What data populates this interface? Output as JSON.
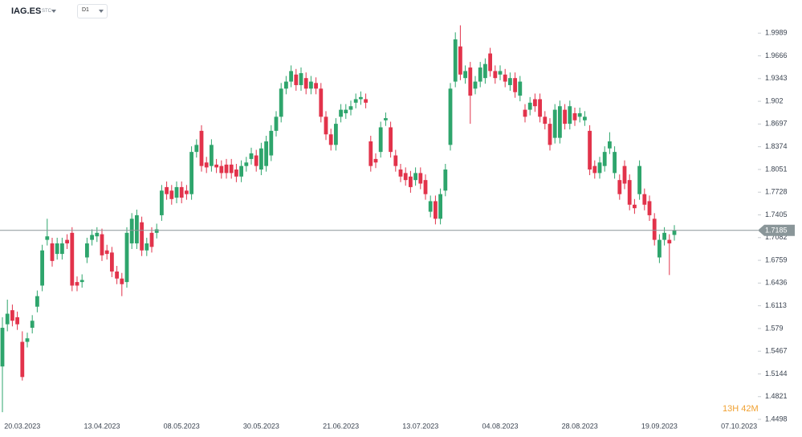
{
  "chart_data": {
    "type": "candlestick",
    "symbol": "IAG.ES",
    "symbol_type": "STC",
    "timeframe": "D1",
    "up_color": "#2ea56c",
    "down_color": "#e2334b",
    "ylim": [
      1.443,
      2.046
    ],
    "yticks": [
      1.9989,
      1.9666,
      1.9343,
      1.902,
      1.8697,
      1.8374,
      1.8051,
      1.7728,
      1.7405,
      1.7082,
      1.6759,
      1.6436,
      1.6113,
      1.579,
      1.5467,
      1.5144,
      1.4821,
      1.4498
    ],
    "current_price": 1.7185,
    "current_price_color": "#8a9699",
    "countdown": "13H 42M",
    "categories": [
      null,
      null,
      null,
      null,
      "20.03.2023",
      null,
      null,
      null,
      null,
      null,
      null,
      null,
      null,
      null,
      null,
      null,
      null,
      null,
      null,
      null,
      "13.04.2023",
      null,
      null,
      null,
      null,
      null,
      null,
      null,
      null,
      null,
      null,
      null,
      null,
      null,
      null,
      null,
      "08.05.2023",
      null,
      null,
      null,
      null,
      null,
      null,
      null,
      null,
      null,
      null,
      null,
      null,
      null,
      null,
      null,
      "30.05.2023",
      null,
      null,
      null,
      null,
      null,
      null,
      null,
      null,
      null,
      null,
      null,
      null,
      null,
      null,
      null,
      "21.06.2023",
      null,
      null,
      null,
      null,
      null,
      null,
      null,
      null,
      null,
      null,
      null,
      null,
      null,
      null,
      null,
      "13.07.2023",
      null,
      null,
      null,
      null,
      null,
      null,
      null,
      null,
      null,
      null,
      null,
      null,
      null,
      null,
      null,
      "04.08.2023",
      null,
      null,
      null,
      null,
      null,
      null,
      null,
      null,
      null,
      null,
      null,
      null,
      null,
      null,
      null,
      "28.08.2023",
      null,
      null,
      null,
      null,
      null,
      null,
      null,
      null,
      null,
      null,
      null,
      null,
      null,
      null,
      null,
      "19.09.2023",
      null,
      null,
      null,
      null,
      null,
      null,
      null,
      null,
      null,
      null,
      null,
      null,
      null,
      null,
      null,
      "07.10.2023"
    ],
    "open": [
      1.525,
      1.585,
      1.605,
      1.595,
      1.56,
      1.56,
      1.58,
      1.61,
      1.64,
      1.705,
      1.7,
      1.685,
      1.685,
      1.705,
      1.715,
      1.645,
      1.645,
      1.68,
      1.705,
      1.71,
      1.713,
      1.69,
      1.687,
      1.66,
      1.65,
      1.645,
      1.7,
      1.7,
      1.73,
      1.69,
      1.715,
      1.715,
      1.74,
      1.78,
      1.775,
      1.765,
      1.78,
      1.775,
      1.77,
      1.83,
      1.86,
      1.815,
      1.81,
      1.812,
      1.81,
      1.812,
      1.812,
      1.805,
      1.795,
      1.81,
      1.82,
      1.825,
      1.805,
      1.81,
      1.825,
      1.86,
      1.88,
      1.92,
      1.93,
      1.94,
      1.925,
      1.935,
      1.92,
      1.928,
      1.92,
      1.88,
      1.855,
      1.84,
      1.88,
      1.885,
      1.89,
      1.9,
      1.905,
      1.905,
      1.845,
      1.82,
      1.83,
      1.875,
      1.865,
      1.825,
      1.805,
      1.8,
      1.795,
      1.79,
      1.8,
      1.79,
      1.745,
      1.76,
      1.735,
      1.775,
      1.84,
      1.93,
      1.98,
      1.935,
      1.95,
      1.92,
      1.93,
      1.935,
      1.97,
      1.945,
      1.94,
      1.94,
      1.925,
      1.935,
      1.91,
      1.89,
      1.89,
      1.905,
      1.905,
      1.88,
      1.87,
      1.85,
      1.85,
      1.89,
      1.87,
      1.885,
      1.88,
      1.875,
      1.86,
      1.81,
      1.8,
      1.81,
      1.835,
      1.8,
      1.79,
      1.81,
      1.79,
      1.755,
      1.77,
      1.77,
      1.76,
      1.735,
      1.68,
      1.705,
      1.705,
      1.712,
      null,
      null,
      null,
      null,
      null,
      null,
      null,
      null,
      null,
      null,
      null,
      null,
      null
    ],
    "high": [
      1.595,
      1.62,
      1.613,
      1.603,
      1.575,
      1.573,
      1.598,
      1.633,
      1.698,
      1.735,
      1.708,
      1.708,
      1.708,
      1.713,
      1.723,
      1.653,
      1.656,
      1.708,
      1.72,
      1.723,
      1.721,
      1.698,
      1.695,
      1.668,
      1.658,
      1.723,
      1.743,
      1.748,
      1.738,
      1.708,
      1.723,
      1.728,
      1.783,
      1.788,
      1.783,
      1.788,
      1.788,
      1.783,
      1.838,
      1.848,
      1.868,
      1.823,
      1.848,
      1.82,
      1.818,
      1.82,
      1.82,
      1.813,
      1.818,
      1.823,
      1.836,
      1.833,
      1.843,
      1.853,
      1.868,
      1.888,
      1.928,
      1.938,
      1.953,
      1.948,
      1.95,
      1.943,
      1.938,
      1.936,
      1.928,
      1.888,
      1.863,
      1.878,
      1.898,
      1.898,
      1.903,
      1.913,
      1.916,
      1.913,
      1.853,
      1.828,
      1.873,
      1.886,
      1.873,
      1.833,
      1.813,
      1.808,
      1.803,
      1.808,
      1.808,
      1.798,
      1.768,
      1.768,
      1.778,
      1.813,
      1.928,
      2.0,
      2.01,
      1.953,
      1.958,
      1.938,
      1.958,
      1.963,
      1.978,
      1.953,
      1.953,
      1.948,
      1.943,
      1.943,
      1.938,
      1.898,
      1.908,
      1.913,
      1.913,
      1.888,
      1.878,
      1.898,
      1.903,
      1.898,
      1.903,
      1.893,
      1.893,
      1.888,
      1.868,
      1.818,
      1.823,
      1.838,
      1.858,
      1.838,
      1.798,
      1.818,
      1.798,
      1.763,
      1.818,
      1.778,
      1.768,
      1.743,
      1.713,
      1.723,
      1.713,
      1.726,
      null,
      null,
      null,
      null,
      null,
      null,
      null,
      null,
      null,
      null,
      null,
      null,
      null
    ],
    "low": [
      1.46,
      1.575,
      1.582,
      1.577,
      1.505,
      1.552,
      1.572,
      1.602,
      1.632,
      1.697,
      1.667,
      1.677,
      1.677,
      1.692,
      1.632,
      1.632,
      1.637,
      1.672,
      1.697,
      1.702,
      1.675,
      1.677,
      1.652,
      1.642,
      1.625,
      1.637,
      1.692,
      1.692,
      1.682,
      1.682,
      1.687,
      1.707,
      1.732,
      1.762,
      1.755,
      1.757,
      1.757,
      1.762,
      1.762,
      1.822,
      1.802,
      1.8,
      1.802,
      1.8,
      1.792,
      1.792,
      1.792,
      1.787,
      1.787,
      1.802,
      1.812,
      1.802,
      1.797,
      1.802,
      1.817,
      1.852,
      1.872,
      1.912,
      1.922,
      1.917,
      1.917,
      1.912,
      1.912,
      1.912,
      1.872,
      1.847,
      1.832,
      1.832,
      1.872,
      1.877,
      1.882,
      1.892,
      1.897,
      1.892,
      1.802,
      1.807,
      1.822,
      1.867,
      1.822,
      1.802,
      1.787,
      1.782,
      1.772,
      1.782,
      1.777,
      1.762,
      1.737,
      1.727,
      1.727,
      1.767,
      1.832,
      1.922,
      1.932,
      1.927,
      1.87,
      1.912,
      1.922,
      1.927,
      1.937,
      1.927,
      1.932,
      1.922,
      1.917,
      1.907,
      1.902,
      1.872,
      1.882,
      1.887,
      1.872,
      1.862,
      1.832,
      1.842,
      1.842,
      1.862,
      1.862,
      1.867,
      1.872,
      1.867,
      1.797,
      1.792,
      1.792,
      1.802,
      1.827,
      1.792,
      1.762,
      1.777,
      1.747,
      1.742,
      1.762,
      1.747,
      1.732,
      1.697,
      1.672,
      1.697,
      1.655,
      1.704,
      null,
      null,
      null,
      null,
      null,
      null,
      null,
      null,
      null,
      null,
      null,
      null,
      null
    ],
    "close": [
      1.58,
      1.6,
      1.59,
      1.585,
      1.51,
      1.565,
      1.59,
      1.625,
      1.69,
      1.71,
      1.675,
      1.7,
      1.7,
      1.7,
      1.64,
      1.64,
      1.648,
      1.7,
      1.712,
      1.715,
      1.683,
      1.685,
      1.66,
      1.65,
      1.642,
      1.715,
      1.735,
      1.74,
      1.69,
      1.7,
      1.695,
      1.72,
      1.775,
      1.77,
      1.763,
      1.78,
      1.765,
      1.77,
      1.83,
      1.84,
      1.81,
      1.808,
      1.84,
      1.808,
      1.8,
      1.8,
      1.8,
      1.795,
      1.81,
      1.815,
      1.828,
      1.81,
      1.835,
      1.845,
      1.86,
      1.88,
      1.92,
      1.93,
      1.945,
      1.925,
      1.942,
      1.92,
      1.93,
      1.92,
      1.88,
      1.855,
      1.84,
      1.87,
      1.89,
      1.89,
      1.895,
      1.905,
      1.908,
      1.9,
      1.81,
      1.815,
      1.865,
      1.878,
      1.83,
      1.81,
      1.795,
      1.79,
      1.78,
      1.8,
      1.785,
      1.77,
      1.76,
      1.735,
      1.77,
      1.805,
      1.92,
      1.99,
      1.94,
      1.945,
      1.91,
      1.93,
      1.95,
      1.955,
      1.945,
      1.935,
      1.945,
      1.93,
      1.935,
      1.915,
      1.93,
      1.88,
      1.9,
      1.895,
      1.88,
      1.87,
      1.84,
      1.89,
      1.895,
      1.87,
      1.895,
      1.875,
      1.885,
      1.88,
      1.805,
      1.8,
      1.815,
      1.83,
      1.845,
      1.83,
      1.77,
      1.785,
      1.755,
      1.75,
      1.81,
      1.755,
      1.74,
      1.705,
      1.705,
      1.715,
      1.7,
      1.7185,
      null,
      null,
      null,
      null,
      null,
      null,
      null,
      null,
      null,
      null,
      null,
      null,
      null
    ]
  }
}
